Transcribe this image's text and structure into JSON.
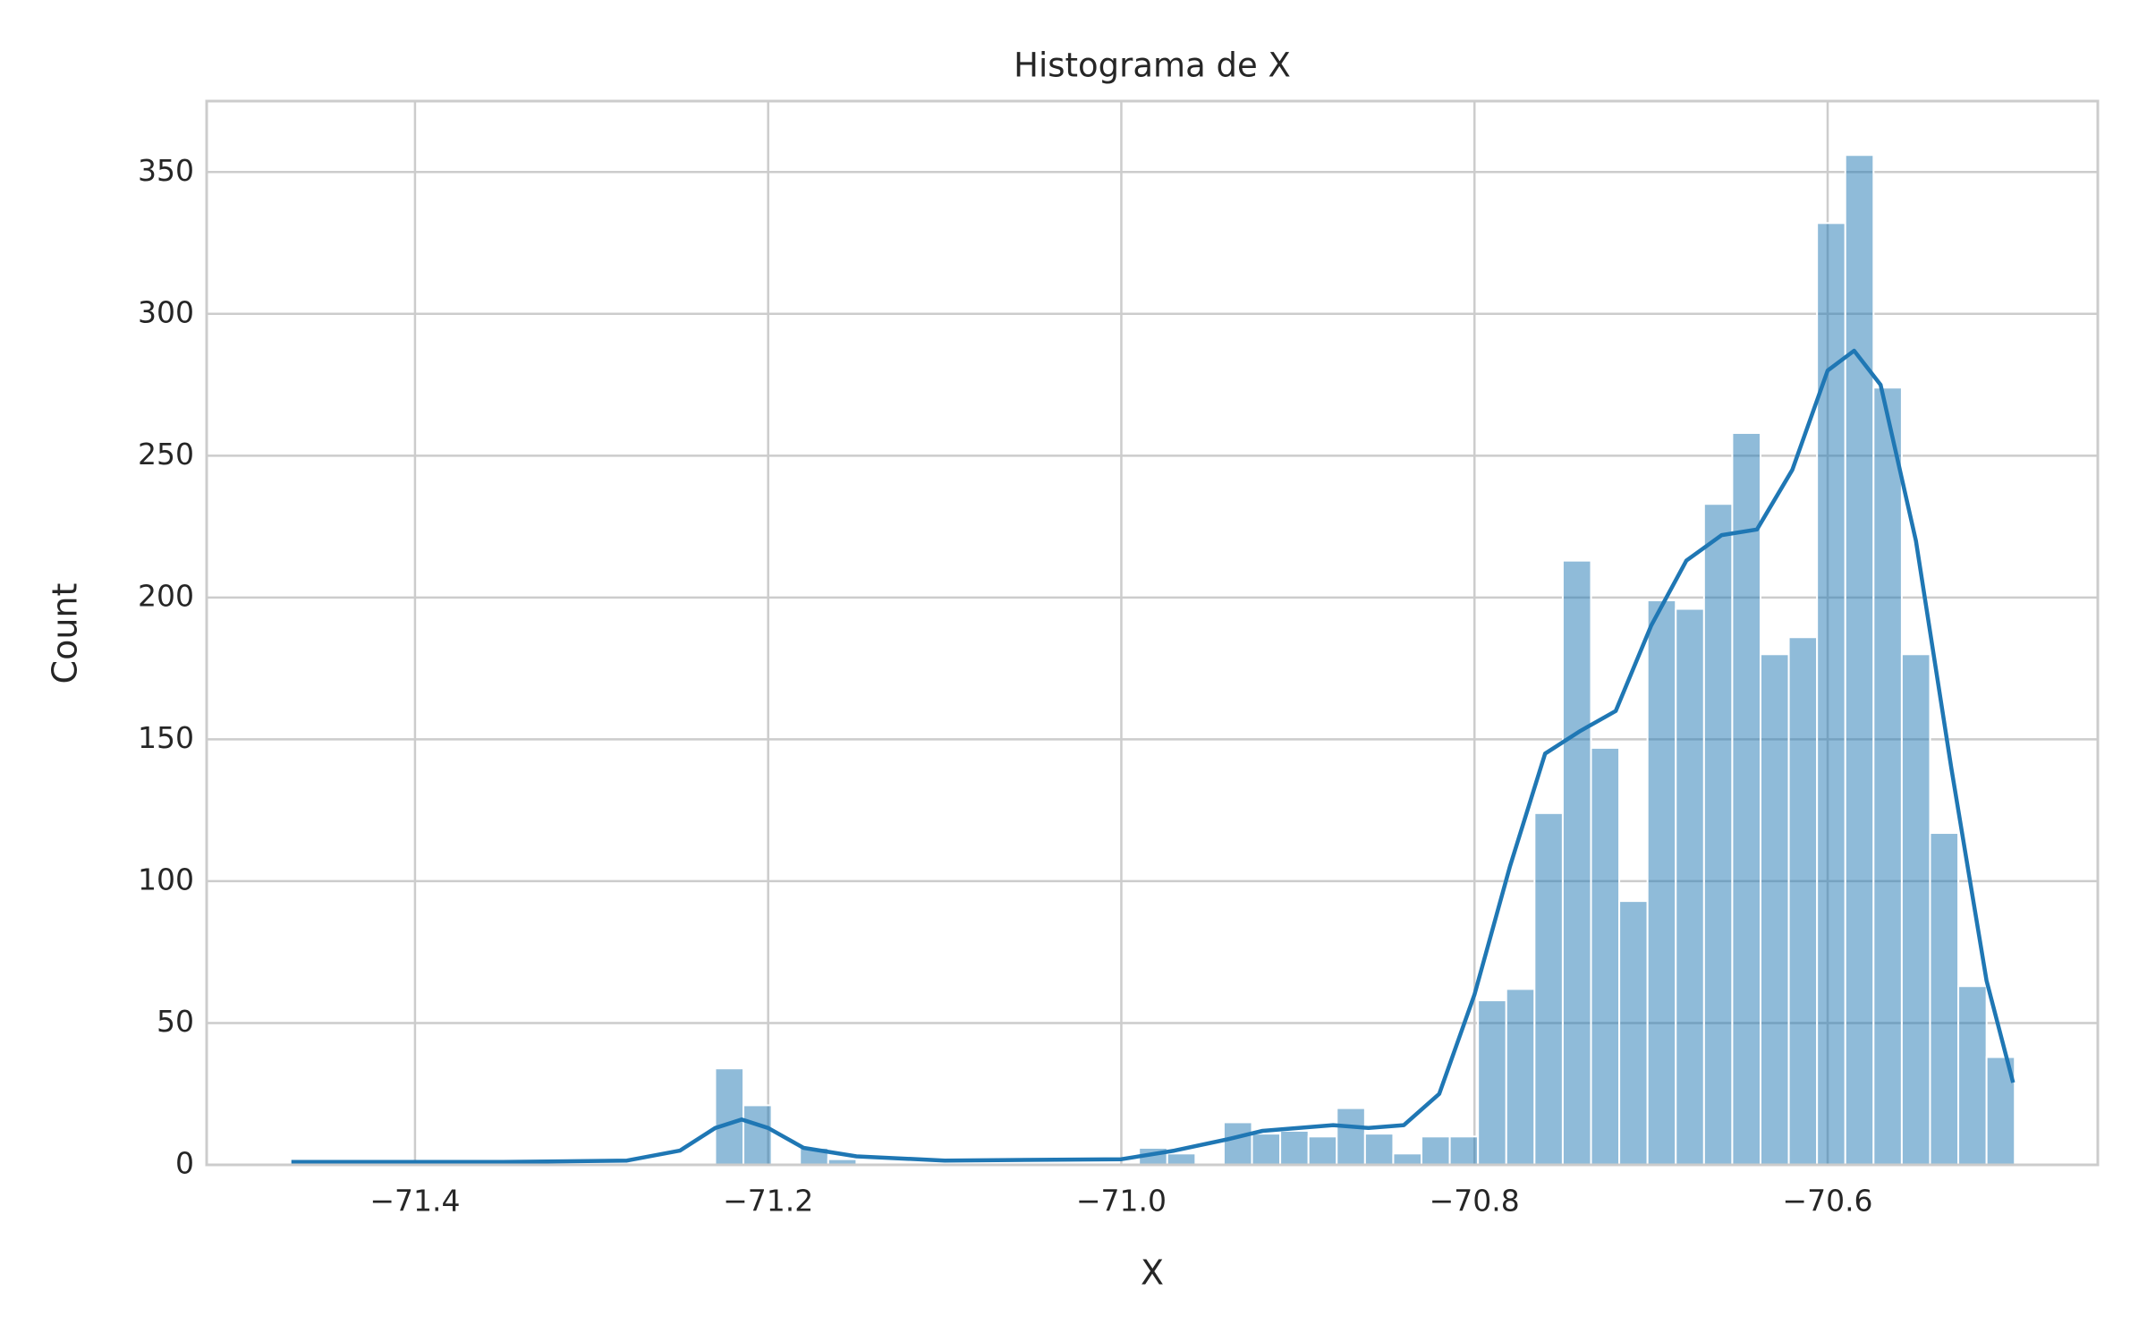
{
  "chart_data": {
    "type": "histogram",
    "title": "Histograma de X",
    "x_label": "X",
    "y_label": "Count",
    "bins": [
      -71.47,
      -71.454,
      -71.438,
      -71.422,
      -71.406,
      -71.39,
      -71.374,
      -71.358,
      -71.342,
      -71.326,
      -71.31,
      -71.294,
      -71.278,
      -71.262,
      -71.246,
      -71.23,
      -71.214,
      -71.198,
      -71.182,
      -71.166,
      -71.15,
      -71.134,
      -71.118,
      -71.102,
      -71.086,
      -71.07,
      -71.054,
      -71.038,
      -71.022,
      -71.006,
      -70.99,
      -70.974,
      -70.958,
      -70.942,
      -70.926,
      -70.91,
      -70.894,
      -70.878,
      -70.862,
      -70.846,
      -70.83,
      -70.814,
      -70.798,
      -70.782,
      -70.766,
      -70.75,
      -70.734,
      -70.718,
      -70.702,
      -70.686,
      -70.67,
      -70.654,
      -70.638,
      -70.622,
      -70.606,
      -70.59,
      -70.574,
      -70.558,
      -70.542,
      -70.526,
      -70.51,
      -70.494
    ],
    "counts": [
      1,
      0,
      0,
      0,
      0,
      0,
      0,
      0,
      0,
      0,
      0,
      0,
      0,
      0,
      0,
      34,
      21,
      0,
      6,
      2,
      0,
      0,
      0,
      0,
      0,
      0,
      0,
      0,
      0,
      0,
      6,
      4,
      0,
      15,
      11,
      12,
      10,
      20,
      11,
      4,
      10,
      10,
      58,
      62,
      124,
      213,
      147,
      93,
      199,
      196,
      233,
      258,
      180,
      186,
      332,
      356,
      274,
      180,
      117,
      63,
      38
    ],
    "color": "#1f77b4",
    "kde": {
      "x": [
        -71.47,
        -71.35,
        -71.28,
        -71.25,
        -71.23,
        -71.215,
        -71.2,
        -71.18,
        -71.15,
        -71.1,
        -71.0,
        -70.97,
        -70.94,
        -70.92,
        -70.88,
        -70.86,
        -70.84,
        -70.82,
        -70.8,
        -70.78,
        -70.76,
        -70.74,
        -70.72,
        -70.7,
        -70.68,
        -70.66,
        -70.64,
        -70.62,
        -70.6,
        -70.585,
        -70.57,
        -70.55,
        -70.53,
        -70.51,
        -70.495
      ],
      "values": [
        1,
        1,
        1.5,
        5,
        13,
        16,
        13,
        6,
        3,
        1.5,
        2,
        5,
        9,
        12,
        14,
        13,
        14,
        25,
        60,
        105,
        145,
        153,
        160,
        190,
        213,
        222,
        224,
        245,
        280,
        287,
        275,
        220,
        140,
        65,
        29
      ]
    },
    "xlim": [
      -71.518,
      -70.447
    ],
    "ylim": [
      0,
      375
    ],
    "xticks": [
      {
        "value": -71.4,
        "label": "−71.4"
      },
      {
        "value": -71.2,
        "label": "−71.2"
      },
      {
        "value": -71.0,
        "label": "−71.0"
      },
      {
        "value": -70.8,
        "label": "−70.8"
      },
      {
        "value": -70.6,
        "label": "−70.6"
      }
    ],
    "yticks": [
      0,
      50,
      100,
      150,
      200,
      250,
      300,
      350
    ],
    "grid": true
  }
}
